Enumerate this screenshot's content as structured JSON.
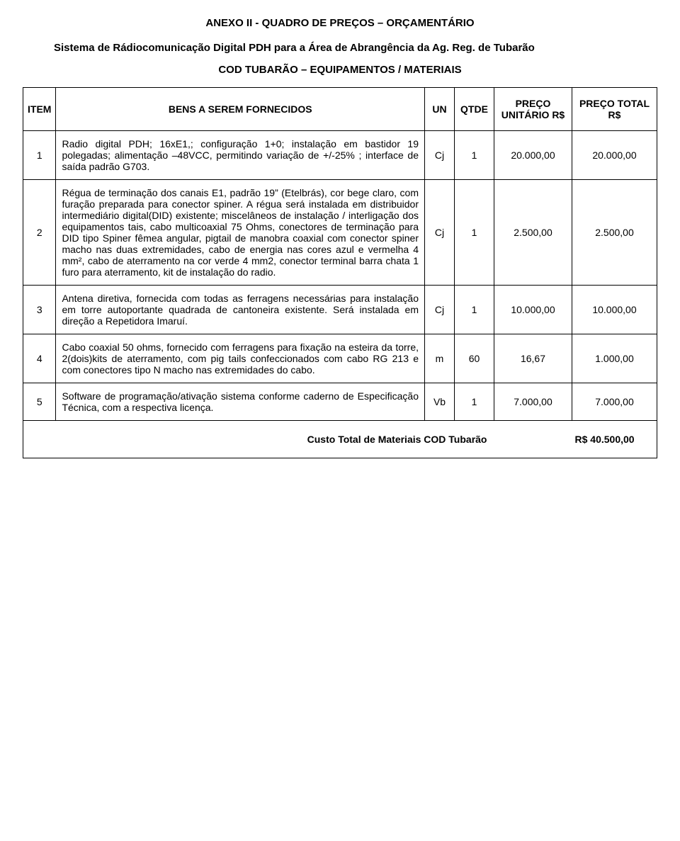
{
  "title": "ANEXO II    -    QUADRO DE PREÇOS – ORÇAMENTÁRIO",
  "subtitle": "Sistema de Rádiocomunicação Digital PDH para a Área de Abrangência da Ag. Reg. de Tubarão",
  "codline": "COD TUBARÃO – EQUIPAMENTOS / MATERIAIS",
  "headers": {
    "item": "ITEM",
    "desc": "BENS A SEREM FORNECIDOS",
    "un": "UN",
    "qtde": "QTDE",
    "unit": "PREÇO UNITÁRIO R$",
    "total": "PREÇO TOTAL R$"
  },
  "rows": [
    {
      "item": "1",
      "desc": "Radio digital PDH; 16xE1,; configuração 1+0; instalação em bastidor 19 polegadas; alimentação –48VCC, permitindo variação de +/-25% ; interface de saída padrão G703.",
      "un": "Cj",
      "qtde": "1",
      "unit": "20.000,00",
      "total": "20.000,00"
    },
    {
      "item": "2",
      "desc": "Régua de terminação dos canais E1, padrão 19” (Etelbrás), cor bege claro, com furação preparada para conector spiner. A régua será instalada em distribuidor intermediário digital(DID) existente; miscelâneos de instalação / interligação dos equipamentos tais, cabo multicoaxial 75 Ohms, conectores de terminação para DID tipo Spiner fêmea angular, pigtail de manobra coaxial com conector spiner macho nas duas extremidades, cabo de energia nas cores azul e vermelha 4 mm², cabo de aterramento na cor verde 4 mm2, conector terminal barra chata 1 furo para aterramento, kit de instalação do radio.",
      "un": "Cj",
      "qtde": "1",
      "unit": "2.500,00",
      "total": "2.500,00"
    },
    {
      "item": "3",
      "desc": "Antena diretiva, fornecida com todas as ferragens necessárias para instalação em torre autoportante quadrada de cantoneira existente. Será instalada em direção a Repetidora Imaruí.",
      "un": "Cj",
      "qtde": "1",
      "unit": "10.000,00",
      "total": "10.000,00"
    },
    {
      "item": "4",
      "desc": "Cabo coaxial 50 ohms, fornecido com ferragens para fixação na esteira da torre, 2(dois)kits de aterramento, com pig tails confeccionados com cabo RG 213 e com conectores tipo N macho nas extremidades do cabo.",
      "un": "m",
      "qtde": "60",
      "unit": "16,67",
      "total": "1.000,00"
    },
    {
      "item": "5",
      "desc": "Software de programação/ativação sistema conforme caderno de Especificação Técnica, com a respectiva licença.",
      "un": "Vb",
      "qtde": "1",
      "unit": "7.000,00",
      "total": "7.000,00"
    }
  ],
  "footer": {
    "label": "Custo Total de Materiais COD Tubarão",
    "value": "R$ 40.500,00"
  }
}
